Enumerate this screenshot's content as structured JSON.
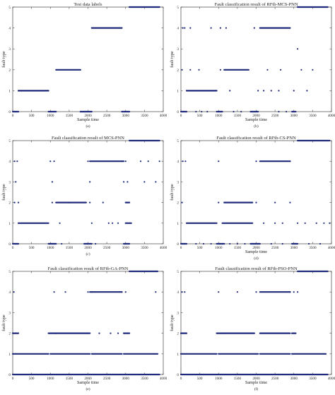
{
  "figure": {
    "background": "#ffffff",
    "marker_color": "#1f2a7a"
  },
  "chart_data": [
    {
      "type": "scatter",
      "panel": "(a)",
      "title": "Test data labels",
      "xlabel": "Sample time",
      "ylabel": "fault type",
      "xlim": [
        0,
        4000
      ],
      "ylim": [
        0,
        5
      ],
      "xticks": [
        0,
        500,
        1000,
        1500,
        2000,
        2500,
        3000,
        3500,
        4000
      ],
      "yticks": [
        0,
        1,
        2,
        3,
        4,
        5
      ],
      "grid": false,
      "series": [
        {
          "segments": [
            [
              0,
              150,
              0
            ],
            [
              150,
              950,
              1
            ],
            [
              950,
              1150,
              0
            ],
            [
              1150,
              1800,
              2
            ],
            [
              1800,
              2100,
              0
            ],
            [
              2100,
              2900,
              4
            ],
            [
              2900,
              3100,
              0
            ],
            [
              3100,
              3900,
              5
            ]
          ],
          "points": []
        }
      ]
    },
    {
      "type": "scatter",
      "panel": "(b)",
      "title": "Fault classification result of RFtb-MCS-PNN",
      "xlabel": "Sample time",
      "ylabel": "fault type",
      "xlim": [
        0,
        4000
      ],
      "ylim": [
        0,
        5
      ],
      "xticks": [
        0,
        500,
        1000,
        1500,
        2000,
        2500,
        3000,
        3500,
        4000
      ],
      "yticks": [
        0,
        1,
        2,
        3,
        4,
        5
      ],
      "grid": false,
      "series": [
        {
          "segments": [
            [
              0,
              150,
              0
            ],
            [
              150,
              950,
              1
            ],
            [
              950,
              1100,
              0
            ],
            [
              1150,
              1800,
              2
            ],
            [
              1850,
              2050,
              0
            ],
            [
              2100,
              2900,
              4
            ],
            [
              2950,
              3050,
              0
            ],
            [
              3100,
              3900,
              5
            ]
          ],
          "points": [
            [
              50,
              4
            ],
            [
              100,
              4
            ],
            [
              250,
              4
            ],
            [
              800,
              4
            ],
            [
              1050,
              4
            ],
            [
              1200,
              4
            ],
            [
              1950,
              4
            ],
            [
              30,
              2
            ],
            [
              250,
              2
            ],
            [
              480,
              2
            ],
            [
              1050,
              2
            ],
            [
              2300,
              2
            ],
            [
              2650,
              2
            ],
            [
              3200,
              2
            ],
            [
              3500,
              2
            ],
            [
              1300,
              1
            ],
            [
              2050,
              1
            ],
            [
              2200,
              1
            ],
            [
              2400,
              1
            ],
            [
              2600,
              1
            ],
            [
              3000,
              1
            ],
            [
              3350,
              1
            ],
            [
              3100,
              3
            ],
            [
              400,
              0
            ],
            [
              550,
              0
            ],
            [
              700,
              0
            ],
            [
              1400,
              0
            ],
            [
              1600,
              0
            ],
            [
              2600,
              0
            ],
            [
              2800,
              0
            ]
          ]
        }
      ]
    },
    {
      "type": "scatter",
      "panel": "(c)",
      "title": "Fault classification result of MCS-PNN",
      "xlabel": "",
      "ylabel": "fault type",
      "xlim": [
        0,
        4000
      ],
      "ylim": [
        0,
        5
      ],
      "xticks": [
        0,
        500,
        1000,
        1500,
        2000,
        2500,
        3000,
        3500,
        4000
      ],
      "yticks": [
        0,
        1,
        2,
        3,
        4,
        5
      ],
      "grid": false,
      "series": [
        {
          "segments": [
            [
              0,
              150,
              0
            ],
            [
              150,
              950,
              1
            ],
            [
              950,
              1150,
              0
            ],
            [
              1150,
              1950,
              2
            ],
            [
              1900,
              2100,
              0
            ],
            [
              2050,
              2950,
              4
            ],
            [
              2950,
              3100,
              0
            ],
            [
              3100,
              3900,
              5
            ],
            [
              3000,
              3150,
              1
            ],
            [
              3000,
              3100,
              2
            ]
          ],
          "points": [
            [
              50,
              4
            ],
            [
              120,
              4
            ],
            [
              1000,
              4
            ],
            [
              1100,
              4
            ],
            [
              2000,
              4
            ],
            [
              2900,
              4
            ],
            [
              3000,
              4
            ],
            [
              3400,
              4
            ],
            [
              3600,
              4
            ],
            [
              3900,
              4
            ],
            [
              80,
              3
            ],
            [
              1050,
              3
            ],
            [
              2050,
              3
            ],
            [
              2950,
              3
            ],
            [
              3050,
              3
            ],
            [
              3500,
              3
            ],
            [
              3800,
              3
            ],
            [
              50,
              2
            ],
            [
              150,
              2
            ],
            [
              1050,
              2
            ],
            [
              1500,
              2
            ],
            [
              2050,
              2
            ],
            [
              2400,
              2
            ],
            [
              1250,
              1
            ],
            [
              2100,
              1
            ],
            [
              2550,
              1
            ],
            [
              2650,
              1
            ],
            [
              2800,
              1
            ],
            [
              1300,
              0
            ],
            [
              2200,
              0
            ]
          ]
        }
      ]
    },
    {
      "type": "scatter",
      "panel": "(d)",
      "title": "Fault classification result of RFtb-CS-PNN",
      "xlabel": "Sample time",
      "ylabel": "fault type",
      "xlim": [
        0,
        4000
      ],
      "ylim": [
        0,
        5
      ],
      "xticks": [
        0,
        500,
        1000,
        1500,
        2000,
        2500,
        3000,
        3500,
        4000
      ],
      "yticks": [
        0,
        1,
        2,
        3,
        4,
        5
      ],
      "grid": false,
      "series": [
        {
          "segments": [
            [
              0,
              150,
              0
            ],
            [
              150,
              950,
              1
            ],
            [
              950,
              1150,
              0
            ],
            [
              1150,
              1900,
              2
            ],
            [
              1850,
              2100,
              0
            ],
            [
              2100,
              2900,
              4
            ],
            [
              2950,
              3100,
              0
            ],
            [
              3100,
              3950,
              5
            ],
            [
              1100,
              1900,
              1
            ]
          ],
          "points": [
            [
              50,
              4
            ],
            [
              120,
              4
            ],
            [
              1000,
              4
            ],
            [
              2000,
              4
            ],
            [
              2900,
              4
            ],
            [
              30,
              2
            ],
            [
              1000,
              2
            ],
            [
              2000,
              2
            ],
            [
              2500,
              2
            ],
            [
              2900,
              2
            ],
            [
              2200,
              1
            ],
            [
              2500,
              1
            ],
            [
              2700,
              1
            ],
            [
              3100,
              1
            ],
            [
              3300,
              1
            ],
            [
              3600,
              1
            ],
            [
              3800,
              1
            ],
            [
              3950,
              1
            ],
            [
              400,
              0
            ],
            [
              600,
              0
            ],
            [
              800,
              0
            ],
            [
              1300,
              0
            ],
            [
              1500,
              0
            ],
            [
              1700,
              0
            ],
            [
              2400,
              0
            ],
            [
              2700,
              0
            ],
            [
              3400,
              0
            ],
            [
              3700,
              0
            ]
          ]
        }
      ]
    },
    {
      "type": "scatter",
      "panel": "(e)",
      "title": "Fault classification result of RFtb-GA-PNN",
      "xlabel": "Sample time",
      "ylabel": "fault type",
      "xlim": [
        0,
        4000
      ],
      "ylim": [
        0,
        5
      ],
      "xticks": [
        0,
        500,
        1000,
        1500,
        2000,
        2500,
        3000,
        3500,
        4000
      ],
      "yticks": [
        0,
        1,
        2,
        3,
        4,
        5
      ],
      "grid": false,
      "series": [
        {
          "segments": [
            [
              0,
              150,
              2
            ],
            [
              950,
              1150,
              2
            ],
            [
              1150,
              2050,
              2
            ],
            [
              2050,
              2900,
              4
            ],
            [
              2950,
              3100,
              2
            ],
            [
              0,
              950,
              1
            ],
            [
              1000,
              2050,
              1
            ],
            [
              2100,
              2900,
              1
            ],
            [
              2950,
              3850,
              1
            ],
            [
              0,
              3900,
              0
            ],
            [
              3100,
              3850,
              5
            ]
          ],
          "points": [
            [
              30,
              4
            ],
            [
              1100,
              4
            ],
            [
              1400,
              4
            ],
            [
              2000,
              4
            ],
            [
              2100,
              4
            ],
            [
              2900,
              4
            ],
            [
              3000,
              4
            ],
            [
              3800,
              4
            ],
            [
              2300,
              2
            ],
            [
              2600,
              2
            ],
            [
              2800,
              2
            ]
          ]
        }
      ]
    },
    {
      "type": "scatter",
      "panel": "(f)",
      "title": "Fault classification result of RFtb-PSO-PNN",
      "xlabel": "Sample time",
      "ylabel": "fault type",
      "xlim": [
        0,
        4000
      ],
      "ylim": [
        0,
        5
      ],
      "xticks": [
        0,
        500,
        1000,
        1500,
        2000,
        2500,
        3000,
        3500,
        4000
      ],
      "yticks": [
        0,
        1,
        2,
        3,
        4,
        5
      ],
      "grid": false,
      "series": [
        {
          "segments": [
            [
              0,
              150,
              2
            ],
            [
              950,
              1150,
              2
            ],
            [
              1150,
              1950,
              2
            ],
            [
              2100,
              2900,
              2
            ],
            [
              2950,
              3050,
              2
            ],
            [
              2100,
              2900,
              4
            ],
            [
              0,
              950,
              1
            ],
            [
              1000,
              2050,
              1
            ],
            [
              2100,
              2900,
              1
            ],
            [
              2950,
              3850,
              1
            ],
            [
              0,
              3900,
              0
            ],
            [
              3100,
              3900,
              5
            ]
          ],
          "points": [
            [
              30,
              4
            ],
            [
              100,
              4
            ],
            [
              1000,
              4
            ],
            [
              1500,
              4
            ],
            [
              2000,
              4
            ],
            [
              2900,
              4
            ],
            [
              3000,
              4
            ],
            [
              3100,
              4
            ]
          ]
        }
      ]
    }
  ],
  "panel_labels": [
    "(a)",
    "(b)",
    "(c)",
    "(d)",
    "(e)",
    "(f)"
  ]
}
